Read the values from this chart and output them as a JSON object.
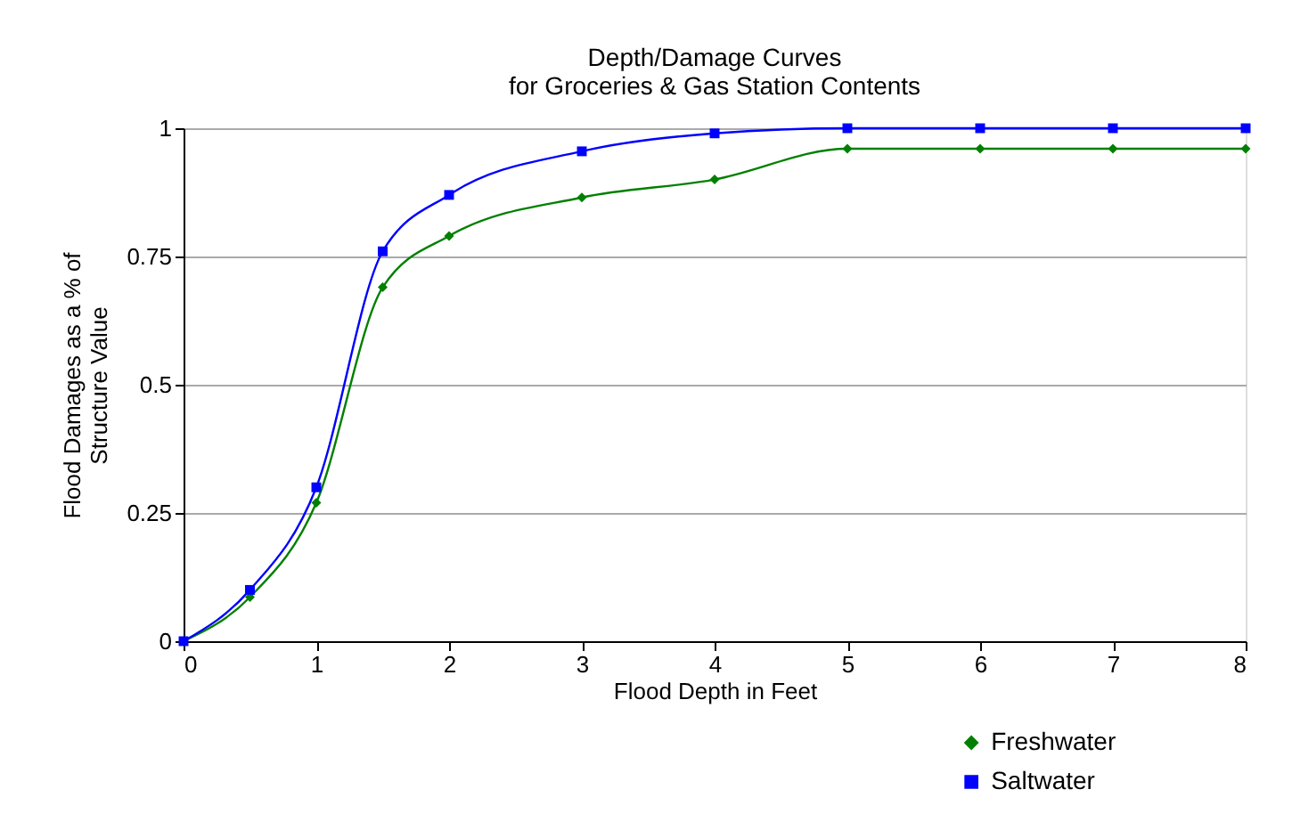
{
  "chart_data": {
    "type": "line",
    "title": "Depth/Damage Curves\nfor Groceries & Gas Station Contents",
    "xlabel": "Flood Depth in Feet",
    "ylabel": "Flood Damages as a % of\nStructure Value",
    "x": [
      0,
      0.5,
      1,
      1.5,
      2,
      3,
      4,
      5,
      6,
      7,
      8
    ],
    "series": [
      {
        "name": "Freshwater",
        "color": "#008000",
        "marker": "diamond",
        "values": [
          0,
          0.086,
          0.27,
          0.69,
          0.79,
          0.865,
          0.9,
          0.96,
          0.96,
          0.96,
          0.96
        ]
      },
      {
        "name": "Saltwater",
        "color": "#0000ff",
        "marker": "square",
        "values": [
          0,
          0.1,
          0.3,
          0.76,
          0.87,
          0.955,
          0.99,
          1,
          1,
          1,
          1
        ]
      }
    ],
    "xlim": [
      0,
      8
    ],
    "xticks": [
      0,
      1,
      2,
      3,
      4,
      5,
      6,
      7,
      8
    ],
    "ylim": [
      0,
      1
    ],
    "yticks": [
      0,
      0.25,
      0.5,
      0.75,
      1
    ],
    "grid": "y",
    "legend": "bottom right",
    "line_style": "solid"
  }
}
